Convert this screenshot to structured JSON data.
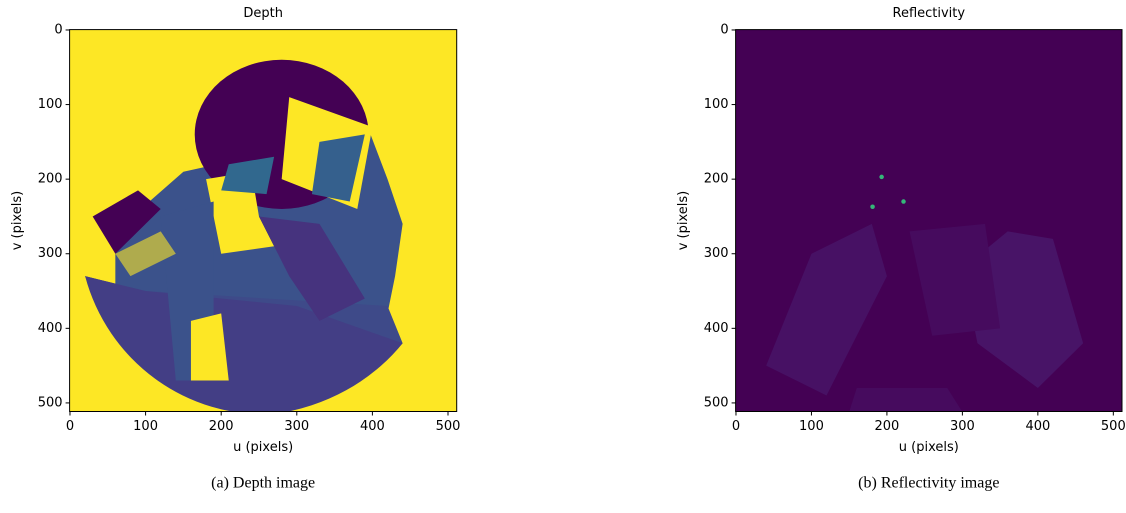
{
  "chart_data": [
    {
      "type": "image",
      "title": "Depth",
      "xlabel": "u (pixels)",
      "ylabel": "v (pixels)",
      "xlim": [
        -0.5,
        511.5
      ],
      "ylim": [
        511.5,
        -0.5
      ],
      "xticks": [
        0,
        100,
        200,
        300,
        400,
        500
      ],
      "yticks": [
        0,
        100,
        200,
        300,
        400,
        500
      ],
      "caption": "(a) Depth image"
    },
    {
      "type": "image",
      "title": "Reflectivity",
      "xlabel": "u (pixels)",
      "ylabel": "v (pixels)",
      "xlim": [
        -0.5,
        511.5
      ],
      "ylim": [
        511.5,
        -0.5
      ],
      "xticks": [
        0,
        100,
        200,
        300,
        400,
        500
      ],
      "yticks": [
        0,
        100,
        200,
        300,
        400,
        500
      ],
      "caption": "(b) Reflectivity image"
    }
  ]
}
